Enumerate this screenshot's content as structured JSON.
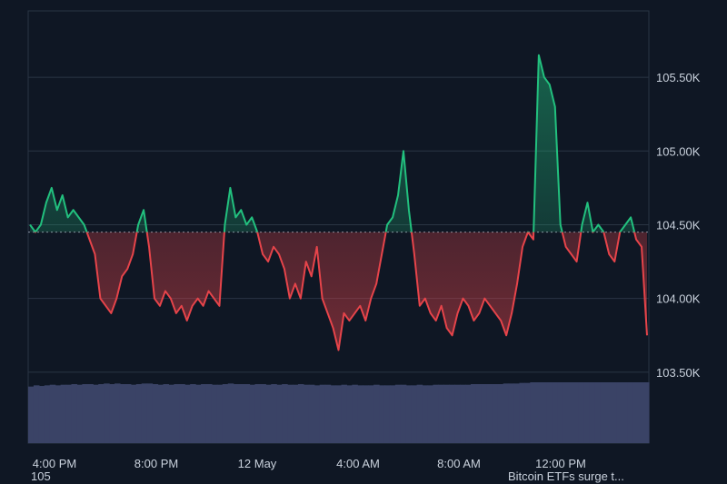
{
  "chart_data": {
    "type": "line",
    "title": "",
    "xlabel": "",
    "ylabel": "",
    "ylim": [
      103.45,
      105.95
    ],
    "baseline": 104.45,
    "x_ticks": [
      "4:00 PM",
      "8:00 PM",
      "12 May",
      "4:00 AM",
      "8:00 AM",
      "12:00 PM"
    ],
    "y_ticks": [
      {
        "value": 103.5,
        "label": "103.50K"
      },
      {
        "value": 104.0,
        "label": "104.00K"
      },
      {
        "value": 104.5,
        "label": "104.50K"
      },
      {
        "value": 105.0,
        "label": "105.00K"
      },
      {
        "value": 105.5,
        "label": "105.50K"
      }
    ],
    "grid": true,
    "colors": {
      "up": "#22c07e",
      "down": "#e6444a",
      "background": "#0f1724",
      "grid": "#2a3544",
      "volume": "#3a4366"
    },
    "series": [
      {
        "values": [
          104.5,
          104.45,
          104.5,
          104.65,
          104.75,
          104.6,
          104.7,
          104.55,
          104.6,
          104.55,
          104.5,
          104.4,
          104.3,
          104.0,
          103.95,
          103.9,
          104.0,
          104.15,
          104.2,
          104.3,
          104.5,
          104.6,
          104.35,
          104.0,
          103.95,
          104.05,
          104.0,
          103.9,
          103.95,
          103.85,
          103.95,
          104.0,
          103.95,
          104.05,
          104.0,
          103.95,
          104.5,
          104.75,
          104.55,
          104.6,
          104.5,
          104.55,
          104.45,
          104.3,
          104.25,
          104.35,
          104.3,
          104.2,
          104.0,
          104.1,
          104.0,
          104.25,
          104.15,
          104.35,
          104.0,
          103.9,
          103.8,
          103.65,
          103.9,
          103.85,
          103.9,
          103.95,
          103.85,
          104.0,
          104.1,
          104.3,
          104.5,
          104.55,
          104.7,
          105.0,
          104.6,
          104.3,
          103.95,
          104.0,
          103.9,
          103.85,
          103.95,
          103.8,
          103.75,
          103.9,
          104.0,
          103.95,
          103.85,
          103.9,
          104.0,
          103.95,
          103.9,
          103.85,
          103.75,
          103.9,
          104.1,
          104.35,
          104.45,
          104.4,
          105.65,
          105.5,
          105.45,
          105.3,
          104.5,
          104.35,
          104.3,
          104.25,
          104.5,
          104.65,
          104.45,
          104.5,
          104.45,
          104.3,
          104.25,
          104.45,
          104.5,
          104.55,
          104.4,
          104.35,
          103.75
        ]
      }
    ],
    "volume": [
      0.93,
      0.95,
      0.94,
      0.95,
      0.96,
      0.95,
      0.96,
      0.96,
      0.97,
      0.96,
      0.97,
      0.97,
      0.96,
      0.97,
      0.98,
      0.97,
      0.98,
      0.97,
      0.97,
      0.96,
      0.97,
      0.98,
      0.98,
      0.97,
      0.96,
      0.97,
      0.96,
      0.97,
      0.97,
      0.96,
      0.97,
      0.96,
      0.97,
      0.97,
      0.96,
      0.96,
      0.97,
      0.98,
      0.97,
      0.97,
      0.97,
      0.96,
      0.97,
      0.97,
      0.96,
      0.97,
      0.96,
      0.97,
      0.96,
      0.96,
      0.97,
      0.96,
      0.96,
      0.95,
      0.96,
      0.96,
      0.95,
      0.95,
      0.96,
      0.95,
      0.96,
      0.95,
      0.95,
      0.95,
      0.96,
      0.95,
      0.95,
      0.95,
      0.96,
      0.96,
      0.95,
      0.95,
      0.96,
      0.95,
      0.95,
      0.96,
      0.96,
      0.96,
      0.96,
      0.96,
      0.96,
      0.96,
      0.97,
      0.97,
      0.97,
      0.97,
      0.97,
      0.97,
      0.98,
      0.98,
      0.98,
      0.99,
      0.99,
      1.0,
      1.0,
      1.0,
      1.0,
      1.0,
      1.0,
      1.0,
      1.0,
      1.0,
      1.0,
      1.0,
      1.0,
      1.0,
      1.0,
      1.0,
      1.0,
      1.0,
      1.0,
      1.0,
      1.0,
      1.0,
      1.0
    ]
  },
  "overlay": {
    "left_text": "105",
    "right_text": "Bitcoin ETFs surge t..."
  }
}
